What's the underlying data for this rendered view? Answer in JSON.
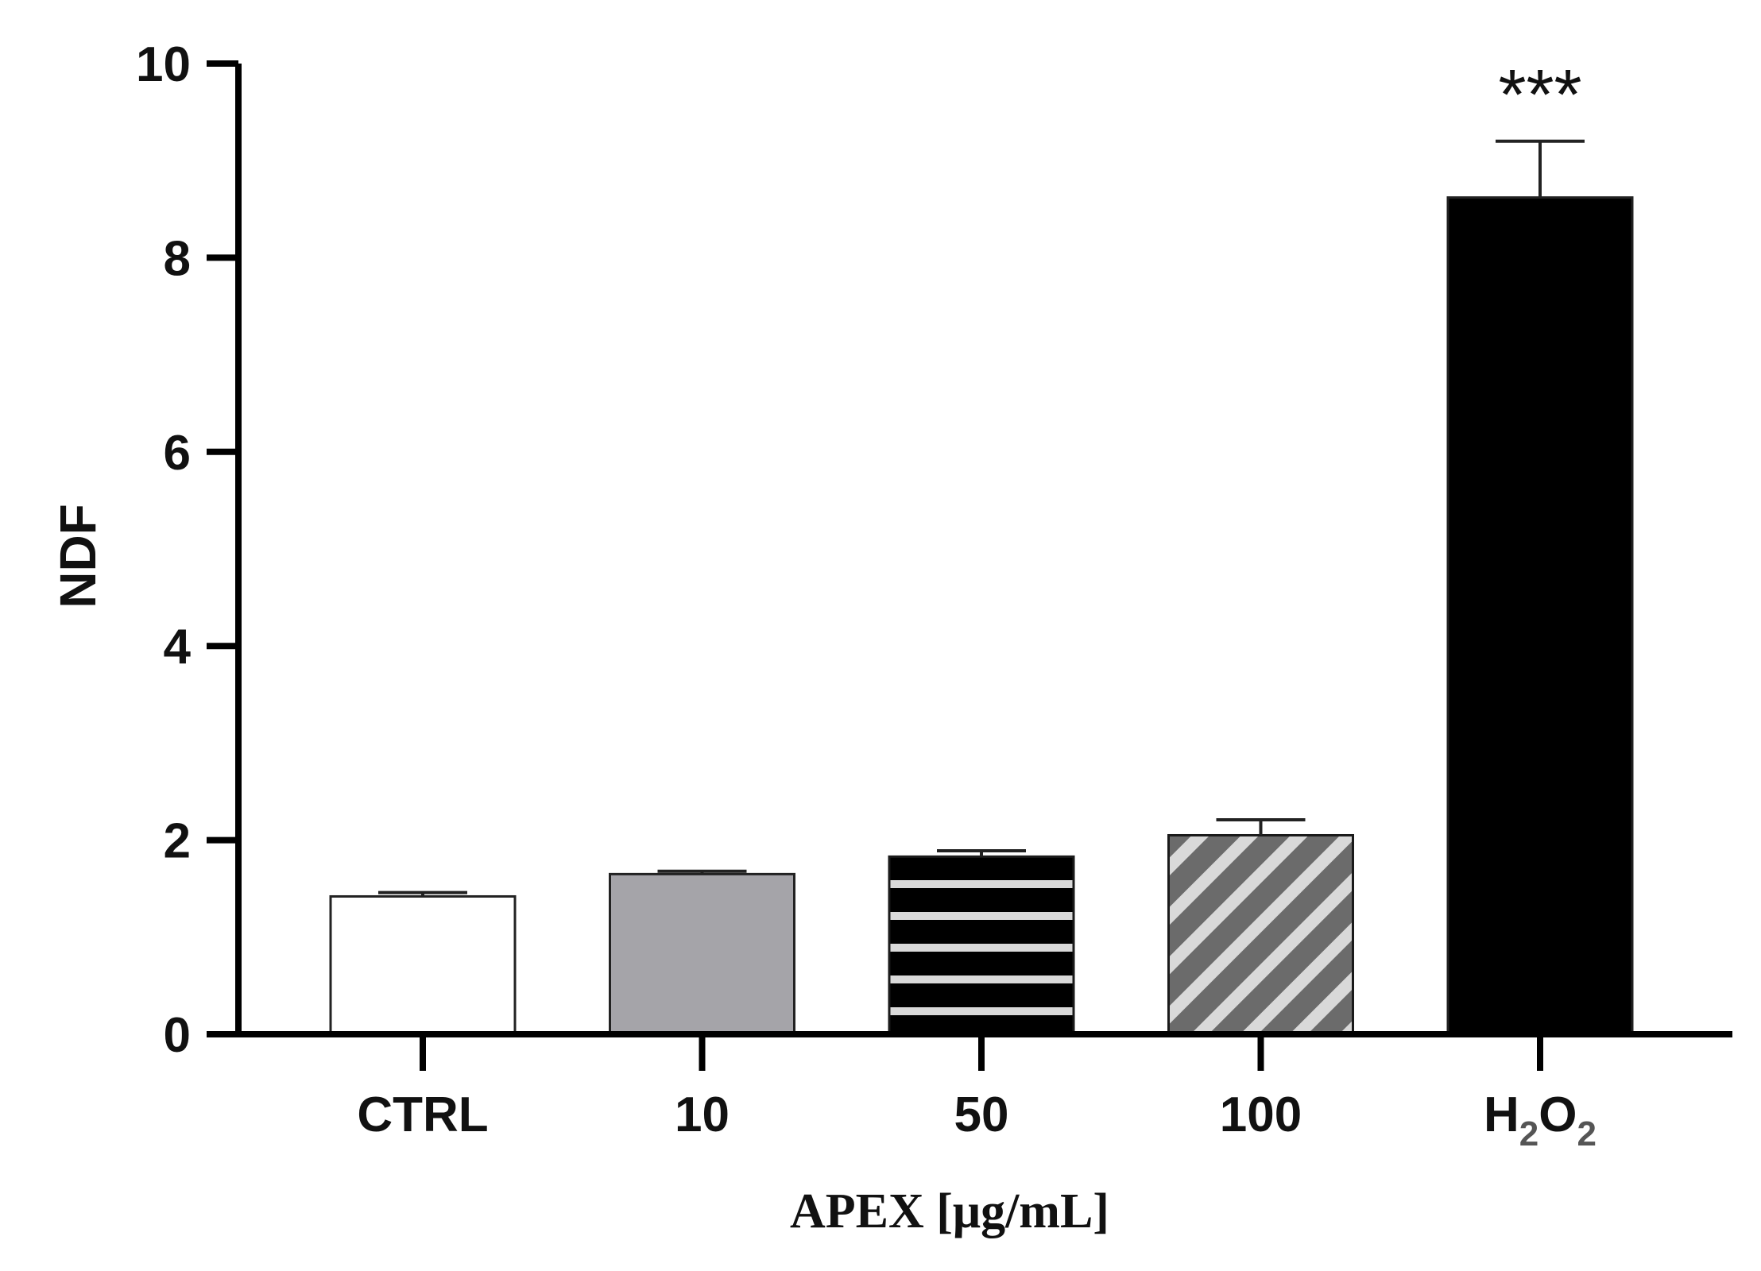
{
  "chart_data": {
    "type": "bar",
    "title": "",
    "xlabel": "APEX [μg/mL]",
    "ylabel": "NDF",
    "ylim": [
      0,
      10
    ],
    "yticks": [
      0,
      2,
      4,
      6,
      8,
      10
    ],
    "categories": [
      {
        "label": "CTRL",
        "main": "CTRL"
      },
      {
        "label": "10",
        "main": "10"
      },
      {
        "label": "50",
        "main": "50"
      },
      {
        "label": "100",
        "main": "100"
      },
      {
        "label": "H2O2",
        "parts": [
          [
            "H",
            false
          ],
          [
            "2",
            true
          ],
          [
            "O",
            false
          ],
          [
            "2",
            true
          ]
        ]
      }
    ],
    "values": [
      1.42,
      1.65,
      1.83,
      2.05,
      8.62
    ],
    "errors": [
      0.04,
      0.03,
      0.06,
      0.16,
      0.58
    ],
    "fills": [
      "white",
      "gray",
      "horizontal-stripes",
      "diagonal-stripes",
      "black"
    ],
    "annotations": [
      {
        "category_index": 4,
        "text": "***"
      }
    ],
    "colors": {
      "gray": "#a5a4a9",
      "black": "#000000",
      "stripe_light": "#d9d9d9",
      "diag_dark": "#6b6b6b"
    }
  }
}
